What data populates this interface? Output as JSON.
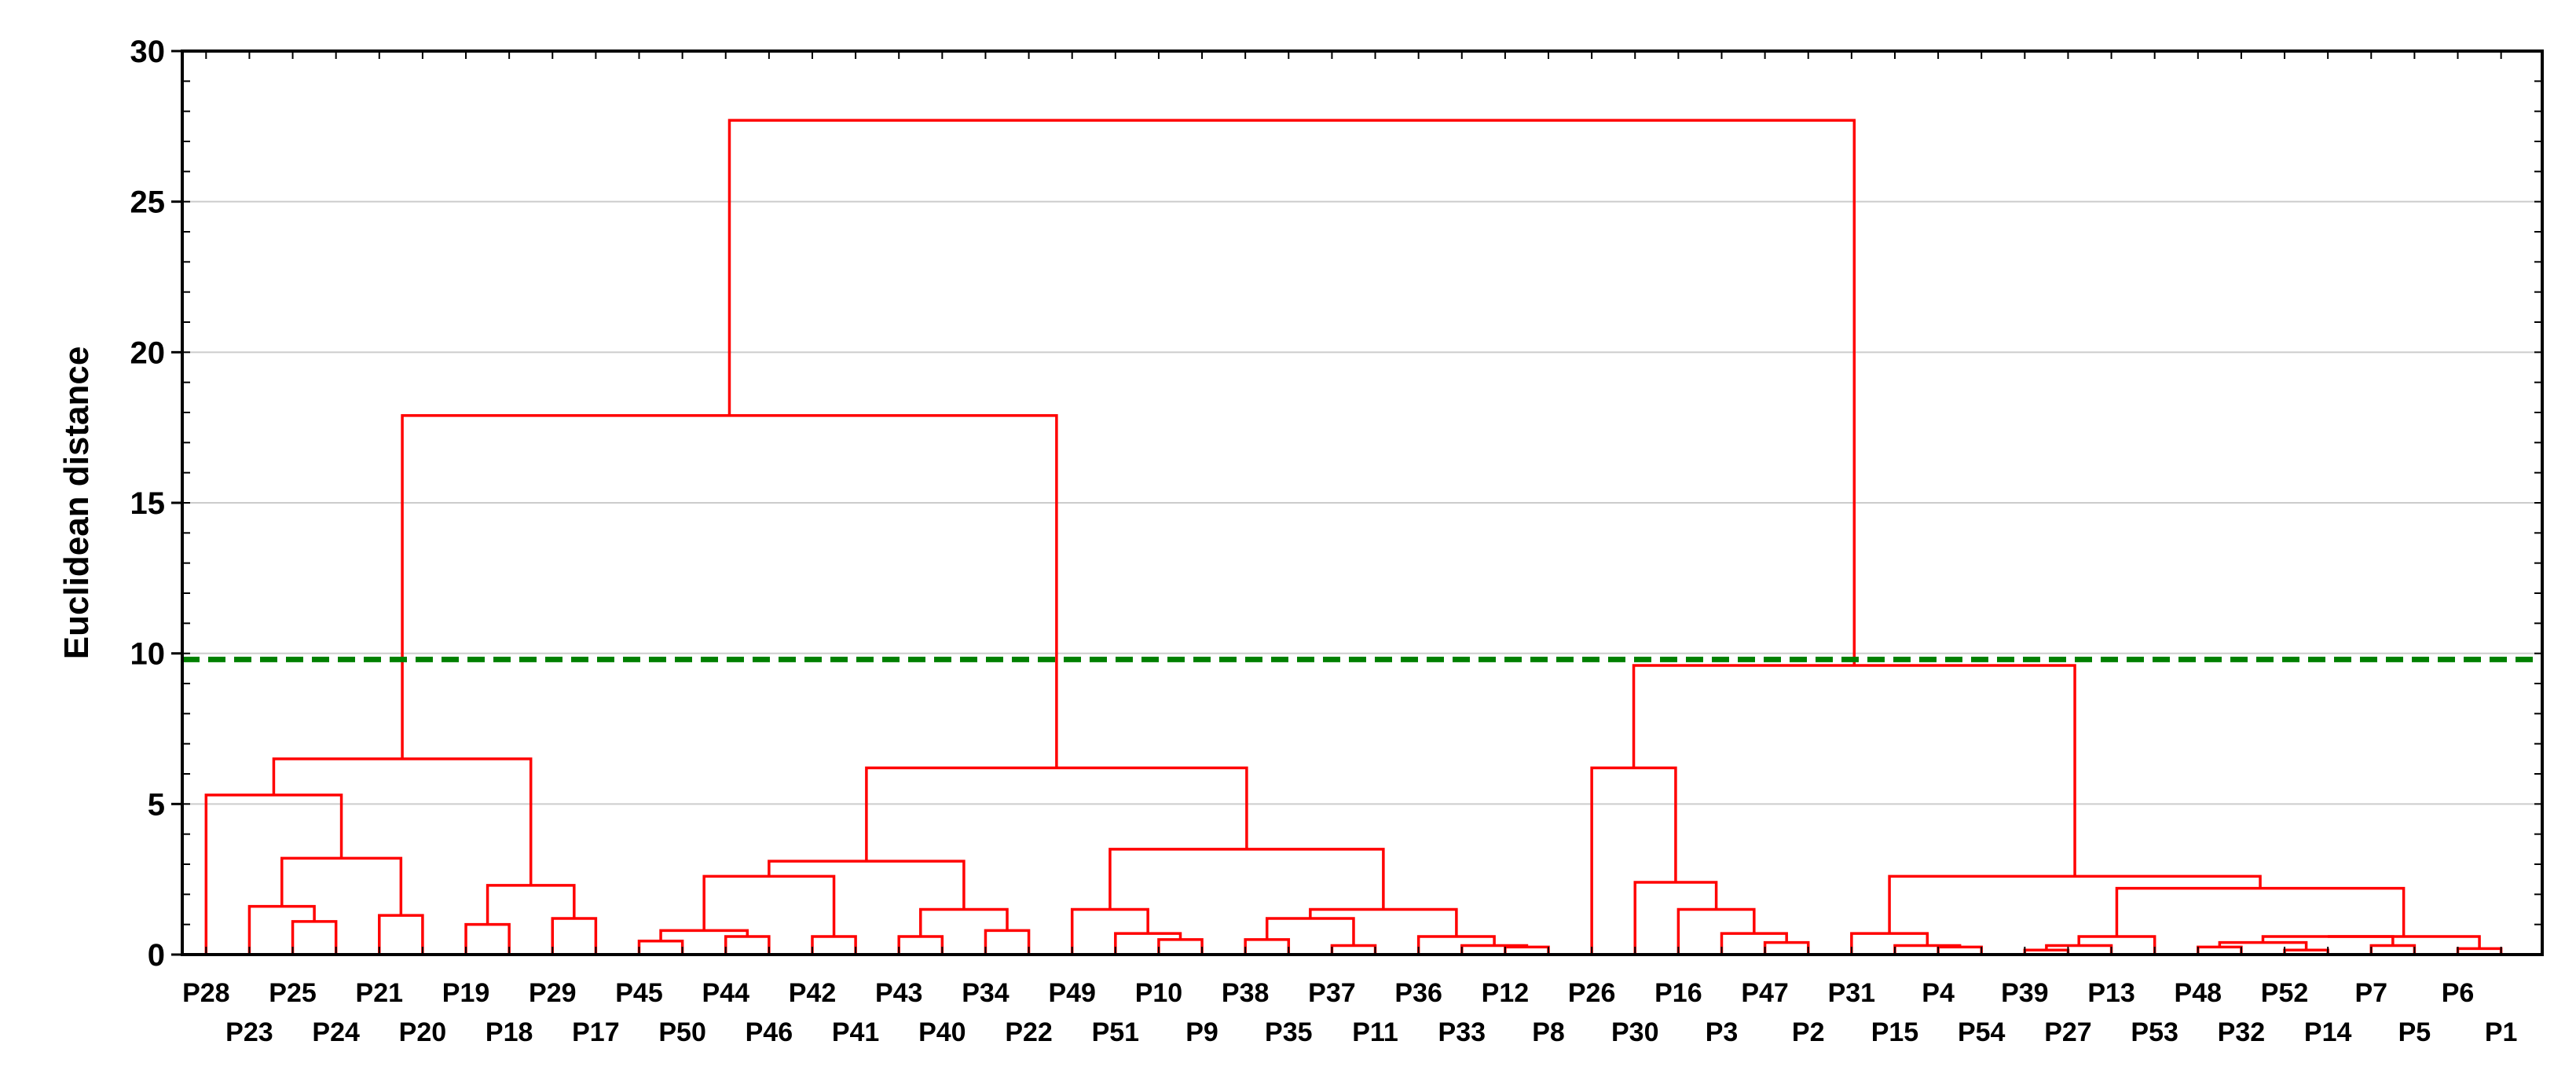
{
  "chart_data": {
    "type": "dendrogram",
    "title": "",
    "xlabel": "",
    "ylabel": "Euclidean distance",
    "ylim": [
      0,
      30
    ],
    "y_ticks": [
      0,
      5,
      10,
      15,
      20,
      25,
      30
    ],
    "grid": true,
    "cut_line": {
      "value": 9.8,
      "color": "#008000",
      "style": "dashed"
    },
    "link_color": "#ff0000",
    "leaves": [
      "P28",
      "P23",
      "P25",
      "P24",
      "P21",
      "P20",
      "P19",
      "P18",
      "P29",
      "P17",
      "P45",
      "P50",
      "P44",
      "P46",
      "P42",
      "P41",
      "P43",
      "P40",
      "P34",
      "P22",
      "P49",
      "P51",
      "P10",
      "P9",
      "P38",
      "P35",
      "P37",
      "P11",
      "P36",
      "P33",
      "P12",
      "P8",
      "P26",
      "P30",
      "P16",
      "P3",
      "P47",
      "P2",
      "P31",
      "P15",
      "P4",
      "P54",
      "P39",
      "P27",
      "P13",
      "P53",
      "P48",
      "P32",
      "P52",
      "P14",
      "P7",
      "P5",
      "P6",
      "P1"
    ],
    "merges": [
      {
        "a": "P25",
        "b": "P24",
        "height": 1.1
      },
      {
        "a": "P21",
        "b": "P20",
        "height": 1.3
      },
      {
        "a": "P23",
        "b": "P25+P24",
        "height": 1.6
      },
      {
        "a": "P23+P25+P24",
        "b": "P21+P20",
        "height": 3.2
      },
      {
        "a": "P28",
        "b": "P23…P20",
        "height": 5.3
      },
      {
        "a": "P19",
        "b": "P18",
        "height": 1.0
      },
      {
        "a": "P29",
        "b": "P17",
        "height": 1.2
      },
      {
        "a": "P19+P18",
        "b": "P29+P17",
        "height": 2.3
      },
      {
        "a": "P28…P20",
        "b": "P19…P17",
        "height": 6.5
      },
      {
        "a": "P45",
        "b": "P50",
        "height": 0.45
      },
      {
        "a": "P44",
        "b": "P46",
        "height": 0.6
      },
      {
        "a": "P42",
        "b": "P41",
        "height": 0.6
      },
      {
        "a": "P45+P50",
        "b": "P44+P46",
        "height": 0.8
      },
      {
        "a": "P45…P46",
        "b": "P42+P41",
        "height": 2.6
      },
      {
        "a": "P43",
        "b": "P40",
        "height": 0.6
      },
      {
        "a": "P34",
        "b": "P22",
        "height": 0.8
      },
      {
        "a": "P43+P40",
        "b": "P34+P22",
        "height": 1.5
      },
      {
        "a": "P45…P41",
        "b": "P43…P22",
        "height": 3.1
      },
      {
        "a": "P10",
        "b": "P9",
        "height": 0.5
      },
      {
        "a": "P51",
        "b": "P10+P9",
        "height": 0.7
      },
      {
        "a": "P49",
        "b": "P51+P10+P9",
        "height": 1.5
      },
      {
        "a": "P38",
        "b": "P35",
        "height": 0.5
      },
      {
        "a": "P37",
        "b": "P11",
        "height": 0.3
      },
      {
        "a": "P38+P35",
        "b": "P37+P11",
        "height": 1.2
      },
      {
        "a": "P12",
        "b": "P8",
        "height": 0.25
      },
      {
        "a": "P33",
        "b": "P12+P8",
        "height": 0.3
      },
      {
        "a": "P36",
        "b": "P33+P12+P8",
        "height": 0.6
      },
      {
        "a": "P38…P11",
        "b": "P36…P8",
        "height": 1.5
      },
      {
        "a": "P49…P9",
        "b": "P38…P8",
        "height": 3.5
      },
      {
        "a": "P45…P22",
        "b": "P49…P8",
        "height": 6.2
      },
      {
        "a": "P28…P17",
        "b": "P45…P8",
        "height": 17.9
      },
      {
        "a": "P47",
        "b": "P2",
        "height": 0.4
      },
      {
        "a": "P3",
        "b": "P47+P2",
        "height": 0.7
      },
      {
        "a": "P16",
        "b": "P3+P47+P2",
        "height": 1.5
      },
      {
        "a": "P30",
        "b": "P16…P2",
        "height": 2.4
      },
      {
        "a": "P26",
        "b": "P30…P2",
        "height": 6.2
      },
      {
        "a": "P4",
        "b": "P54",
        "height": 0.25
      },
      {
        "a": "P15",
        "b": "P4+P54",
        "height": 0.3
      },
      {
        "a": "P31",
        "b": "P15+P4+P54",
        "height": 0.7
      },
      {
        "a": "P39",
        "b": "P27",
        "height": 0.15
      },
      {
        "a": "P39+P27",
        "b": "P13",
        "height": 0.3
      },
      {
        "a": "P39…P13",
        "b": "P53",
        "height": 0.6
      },
      {
        "a": "P48",
        "b": "P32",
        "height": 0.25
      },
      {
        "a": "P52",
        "b": "P14",
        "height": 0.15
      },
      {
        "a": "P48+P32",
        "b": "P52+P14",
        "height": 0.4
      },
      {
        "a": "P7",
        "b": "P5",
        "height": 0.3
      },
      {
        "a": "P48…P14",
        "b": "P7+P5",
        "height": 0.6
      },
      {
        "a": "P6",
        "b": "P1",
        "height": 0.2
      },
      {
        "a": "P48…P5",
        "b": "P6+P1",
        "height": 0.6
      },
      {
        "a": "P39…P53",
        "b": "P48…P1",
        "height": 2.2
      },
      {
        "a": "P31…P54",
        "b": "P39…P1",
        "height": 2.6
      },
      {
        "a": "P26…P2",
        "b": "P31…P1",
        "height": 9.6
      },
      {
        "a": "P28…P8",
        "b": "P26…P1",
        "height": 27.7
      }
    ]
  }
}
